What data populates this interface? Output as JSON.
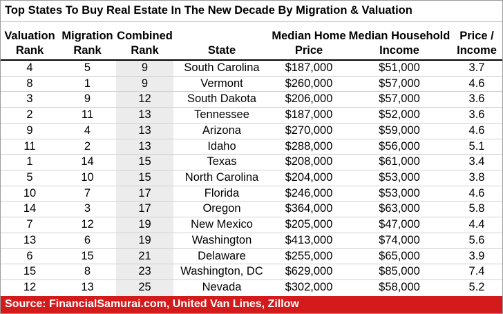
{
  "chart_data": {
    "type": "table",
    "title": "Top States To Buy Real Estate In The New Decade By Migration & Valuation",
    "columns": [
      [
        "Valuation",
        "Rank"
      ],
      [
        "Migration",
        "Rank"
      ],
      [
        "Combined",
        "Rank"
      ],
      [
        "",
        "State"
      ],
      [
        "Median Home",
        "Price"
      ],
      [
        "Median Household",
        "Income"
      ],
      [
        "Price /",
        "Income"
      ]
    ],
    "rows": [
      [
        "4",
        "5",
        "9",
        "South Carolina",
        "$187,000",
        "$51,000",
        "3.7"
      ],
      [
        "8",
        "1",
        "9",
        "Vermont",
        "$260,000",
        "$57,000",
        "4.6"
      ],
      [
        "3",
        "9",
        "12",
        "South Dakota",
        "$206,000",
        "$57,000",
        "3.6"
      ],
      [
        "2",
        "11",
        "13",
        "Tennessee",
        "$187,000",
        "$52,000",
        "3.6"
      ],
      [
        "9",
        "4",
        "13",
        "Arizona",
        "$270,000",
        "$59,000",
        "4.6"
      ],
      [
        "11",
        "2",
        "13",
        "Idaho",
        "$288,000",
        "$56,000",
        "5.1"
      ],
      [
        "1",
        "14",
        "15",
        "Texas",
        "$208,000",
        "$61,000",
        "3.4"
      ],
      [
        "5",
        "10",
        "15",
        "North Carolina",
        "$204,000",
        "$53,000",
        "3.8"
      ],
      [
        "10",
        "7",
        "17",
        "Florida",
        "$246,000",
        "$53,000",
        "4.6"
      ],
      [
        "14",
        "3",
        "17",
        "Oregon",
        "$364,000",
        "$63,000",
        "5.8"
      ],
      [
        "7",
        "12",
        "19",
        "New Mexico",
        "$205,000",
        "$47,000",
        "4.4"
      ],
      [
        "13",
        "6",
        "19",
        "Washington",
        "$413,000",
        "$74,000",
        "5.6"
      ],
      [
        "6",
        "15",
        "21",
        "Delaware",
        "$255,000",
        "$65,000",
        "3.9"
      ],
      [
        "15",
        "8",
        "23",
        "Washington, DC",
        "$629,000",
        "$85,000",
        "7.4"
      ],
      [
        "12",
        "13",
        "25",
        "Nevada",
        "$302,000",
        "$58,000",
        "5.2"
      ]
    ],
    "highlighted_column": "Combined Rank",
    "source": "Source: FinancialSamurai.com, United Van Lines, Zillow",
    "colors": {
      "footer_background": "#d31b1b",
      "footer_text": "#ffffff",
      "highlight_column_fill": "#ececec",
      "text": "#000000"
    }
  }
}
